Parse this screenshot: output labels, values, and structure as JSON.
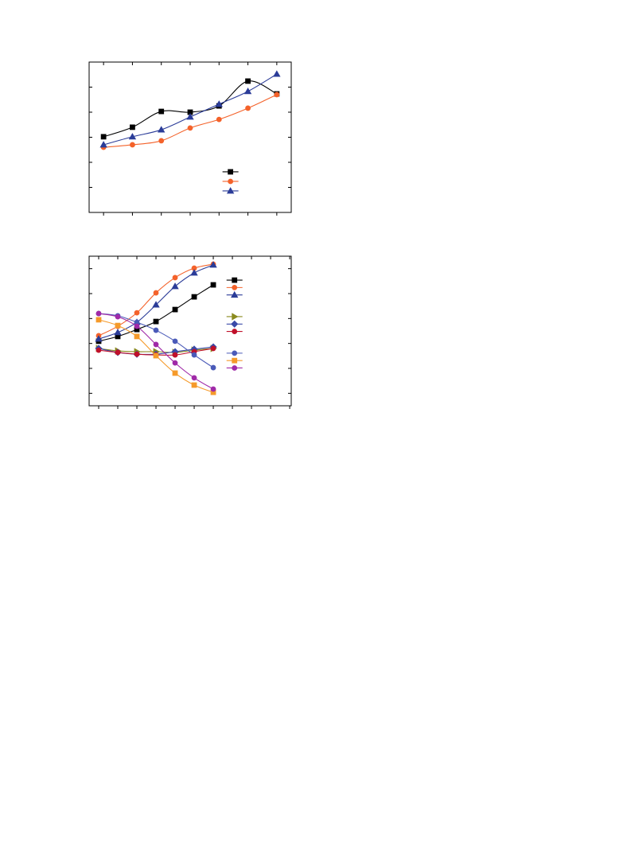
{
  "chart_data": [
    {
      "type": "line",
      "x": [
        1,
        2,
        3,
        4,
        5,
        6,
        7
      ],
      "xlim": [
        0.5,
        7.5
      ],
      "xticks": [
        1,
        2,
        3,
        4,
        5,
        6,
        7
      ],
      "ylim": [
        0,
        6
      ],
      "yticks": [
        1,
        2,
        3,
        4,
        5
      ],
      "legend": "lower right",
      "series": [
        {
          "color": "#000000",
          "marker": "square",
          "values": [
            3.02,
            3.4,
            4.03,
            4.0,
            4.25,
            5.24,
            4.73
          ]
        },
        {
          "color": "#f4622a",
          "marker": "circle",
          "values": [
            2.6,
            2.7,
            2.86,
            3.37,
            3.71,
            4.16,
            4.7
          ]
        },
        {
          "color": "#2b3c98",
          "marker": "triangle",
          "values": [
            2.7,
            3.02,
            3.3,
            3.81,
            4.32,
            4.83,
            5.52
          ]
        }
      ]
    },
    {
      "type": "line",
      "x": [
        1,
        2,
        3,
        4,
        5,
        6,
        7
      ],
      "xlim": [
        0.5,
        11.08
      ],
      "xticks": [
        1,
        2,
        3,
        4,
        5,
        6,
        7,
        8,
        9,
        10,
        11
      ],
      "ylim": [
        0,
        6
      ],
      "yticks": [
        0.5,
        1.5,
        2.5,
        3.5,
        4.5,
        5.5
      ],
      "legend": "right",
      "series": [
        {
          "color": "#000000",
          "marker": "square",
          "values": [
            2.59,
            2.78,
            3.06,
            3.38,
            3.86,
            4.37,
            4.85
          ]
        },
        {
          "color": "#f4622a",
          "marker": "circle",
          "values": [
            2.81,
            3.19,
            3.73,
            4.53,
            5.14,
            5.52,
            5.68
          ]
        },
        {
          "color": "#2b3c98",
          "marker": "triangle",
          "values": [
            2.68,
            2.94,
            3.35,
            4.05,
            4.79,
            5.33,
            5.65
          ]
        },
        {
          "color": "#8a8a1e",
          "marker": "triangle-right",
          "values": [
            2.3,
            2.2,
            2.17,
            2.17,
            2.14,
            2.23,
            2.3
          ]
        },
        {
          "color": "#3a4aa8",
          "marker": "diamond",
          "values": [
            2.3,
            2.14,
            2.07,
            2.07,
            2.17,
            2.27,
            2.36
          ]
        },
        {
          "color": "#c0102a",
          "marker": "circle",
          "values": [
            2.23,
            2.14,
            2.07,
            2.04,
            2.04,
            2.17,
            2.3
          ]
        },
        {
          "color": "#4a5ab8",
          "marker": "circle",
          "values": [
            3.7,
            3.61,
            3.35,
            3.03,
            2.59,
            2.04,
            1.53
          ]
        },
        {
          "color": "#f59a2a",
          "marker": "square",
          "values": [
            3.45,
            3.22,
            2.78,
            2.01,
            1.31,
            0.83,
            0.54
          ]
        },
        {
          "color": "#a02aa8",
          "marker": "circle",
          "values": [
            3.7,
            3.57,
            3.19,
            2.46,
            1.72,
            1.12,
            0.67
          ]
        }
      ]
    }
  ]
}
